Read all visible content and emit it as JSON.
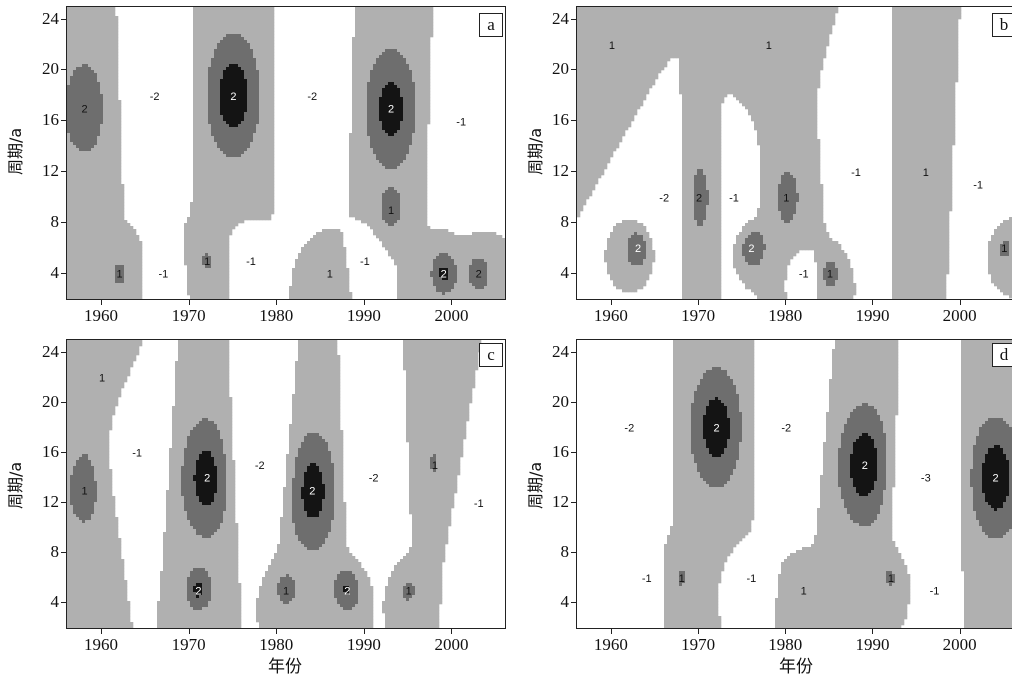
{
  "chart_data": [
    {
      "type": "heatmap",
      "panel": "a",
      "xlabel": "",
      "ylabel": "周期/a",
      "xticks": [
        1960,
        1970,
        1980,
        1990,
        2000
      ],
      "yticks": [
        4,
        8,
        12,
        16,
        20,
        24
      ],
      "xlim": [
        1956,
        2006
      ],
      "ylim": [
        2,
        25
      ],
      "contour_levels": [
        -2,
        -1,
        0,
        1,
        2
      ],
      "centers": [
        {
          "x": 1958,
          "y": 17,
          "v": 1.6
        },
        {
          "x": 1966,
          "y": 18,
          "v": -1.6
        },
        {
          "x": 1975,
          "y": 18,
          "v": 2.6
        },
        {
          "x": 1984,
          "y": 18,
          "v": -2.3
        },
        {
          "x": 1993,
          "y": 17,
          "v": 2.4
        },
        {
          "x": 2001,
          "y": 16,
          "v": -1.5
        },
        {
          "x": 1962,
          "y": 4,
          "v": 1.2
        },
        {
          "x": 1967,
          "y": 4,
          "v": -1.3
        },
        {
          "x": 1972,
          "y": 5,
          "v": 1.1
        },
        {
          "x": 1977,
          "y": 5,
          "v": -1.1
        },
        {
          "x": 1986,
          "y": 4,
          "v": 1.0
        },
        {
          "x": 1990,
          "y": 5,
          "v": -1.0
        },
        {
          "x": 1999,
          "y": 4,
          "v": 2.2
        },
        {
          "x": 2003,
          "y": 4,
          "v": 1.6
        },
        {
          "x": 1993,
          "y": 9,
          "v": 1.4
        }
      ]
    },
    {
      "type": "heatmap",
      "panel": "b",
      "xlabel": "",
      "ylabel": "周期/a",
      "xticks": [
        1960,
        1970,
        1980,
        1990,
        2000
      ],
      "yticks": [
        4,
        8,
        12,
        16,
        20,
        24
      ],
      "xlim": [
        1956,
        2006
      ],
      "ylim": [
        2,
        25
      ],
      "contour_levels": [
        -2,
        -1,
        0,
        1,
        2
      ],
      "centers": [
        {
          "x": 1960,
          "y": 22,
          "v": 0.7
        },
        {
          "x": 1978,
          "y": 22,
          "v": 0.6
        },
        {
          "x": 1966,
          "y": 10,
          "v": -1.6
        },
        {
          "x": 1970,
          "y": 10,
          "v": 1.8
        },
        {
          "x": 1974,
          "y": 10,
          "v": -1.2
        },
        {
          "x": 1980,
          "y": 10,
          "v": 1.2
        },
        {
          "x": 1988,
          "y": 12,
          "v": -1.1
        },
        {
          "x": 1996,
          "y": 12,
          "v": 1.0
        },
        {
          "x": 2002,
          "y": 11,
          "v": -1.0
        },
        {
          "x": 1963,
          "y": 6,
          "v": 2.2
        },
        {
          "x": 1976,
          "y": 6,
          "v": 2.1
        },
        {
          "x": 1982,
          "y": 4,
          "v": -1.3
        },
        {
          "x": 1985,
          "y": 4,
          "v": 1.4
        },
        {
          "x": 2005,
          "y": 6,
          "v": 1.3
        }
      ]
    },
    {
      "type": "heatmap",
      "panel": "c",
      "xlabel": "年份",
      "ylabel": "周期/a",
      "xticks": [
        1960,
        1970,
        1980,
        1990,
        2000
      ],
      "yticks": [
        4,
        8,
        12,
        16,
        20,
        24
      ],
      "xlim": [
        1956,
        2006
      ],
      "ylim": [
        2,
        25
      ],
      "contour_levels": [
        -2,
        -1,
        0,
        1,
        2
      ],
      "centers": [
        {
          "x": 1960,
          "y": 22,
          "v": 0.7
        },
        {
          "x": 1958,
          "y": 13,
          "v": 1.3
        },
        {
          "x": 1964,
          "y": 16,
          "v": -1.5
        },
        {
          "x": 1972,
          "y": 14,
          "v": 2.5
        },
        {
          "x": 1978,
          "y": 15,
          "v": -2.3
        },
        {
          "x": 1984,
          "y": 13,
          "v": 2.5
        },
        {
          "x": 1991,
          "y": 14,
          "v": -2.2
        },
        {
          "x": 1998,
          "y": 15,
          "v": 1.1
        },
        {
          "x": 2003,
          "y": 12,
          "v": -1.1
        },
        {
          "x": 1971,
          "y": 5,
          "v": 2.1
        },
        {
          "x": 1981,
          "y": 5,
          "v": 1.4
        },
        {
          "x": 1988,
          "y": 5,
          "v": 2.1
        },
        {
          "x": 1995,
          "y": 5,
          "v": 1.2
        }
      ]
    },
    {
      "type": "heatmap",
      "panel": "d",
      "xlabel": "年份",
      "ylabel": "周期/a",
      "xticks": [
        1960,
        1970,
        1980,
        1990,
        2000
      ],
      "yticks": [
        4,
        8,
        12,
        16,
        20,
        24
      ],
      "xlim": [
        1956,
        2006
      ],
      "ylim": [
        2,
        25
      ],
      "contour_levels": [
        -3,
        -2,
        -1,
        0,
        1,
        2
      ],
      "centers": [
        {
          "x": 1962,
          "y": 18,
          "v": -2.1
        },
        {
          "x": 1972,
          "y": 18,
          "v": 2.5
        },
        {
          "x": 1980,
          "y": 18,
          "v": -2.0
        },
        {
          "x": 1989,
          "y": 15,
          "v": 2.6
        },
        {
          "x": 1996,
          "y": 14,
          "v": -3.1
        },
        {
          "x": 2004,
          "y": 14,
          "v": 2.6
        },
        {
          "x": 1964,
          "y": 6,
          "v": -1.1
        },
        {
          "x": 1968,
          "y": 6,
          "v": 1.1
        },
        {
          "x": 1976,
          "y": 6,
          "v": -1.1
        },
        {
          "x": 1982,
          "y": 5,
          "v": 1.0
        },
        {
          "x": 1992,
          "y": 6,
          "v": 1.1
        },
        {
          "x": 1997,
          "y": 5,
          "v": -1.0
        }
      ]
    }
  ]
}
